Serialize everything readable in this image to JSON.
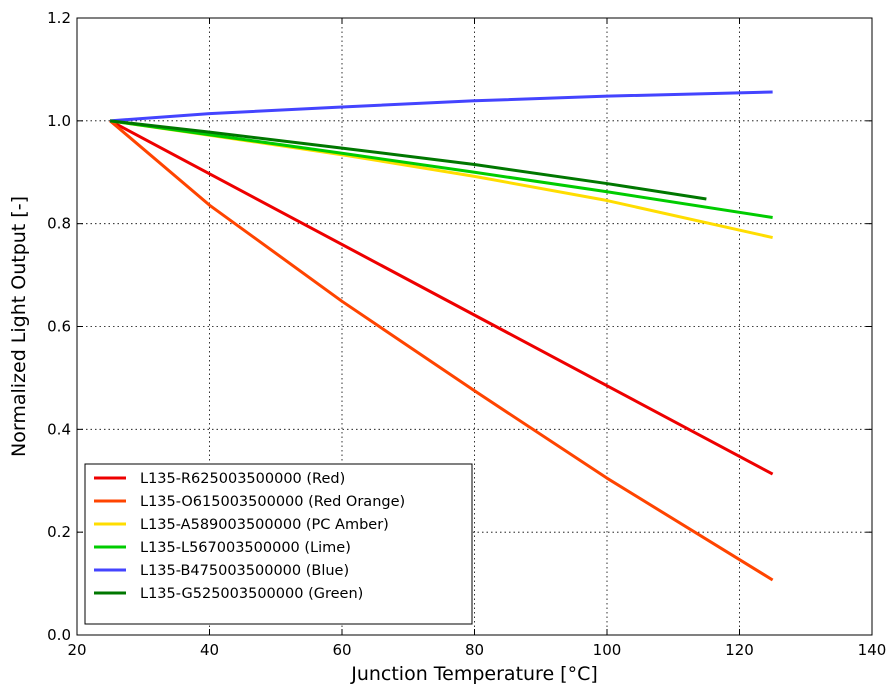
{
  "chart_data": {
    "type": "line",
    "xlabel": "Junction Temperature [°C]",
    "ylabel": "Normalized Light Output [-]",
    "xlim": [
      20,
      140
    ],
    "ylim": [
      0.0,
      1.2
    ],
    "x_ticks": [
      "20",
      "40",
      "60",
      "80",
      "100",
      "120",
      "140"
    ],
    "y_ticks": [
      "0.0",
      "0.2",
      "0.4",
      "0.6",
      "0.8",
      "1.0",
      "1.2"
    ],
    "grid": true,
    "legend_position": "lower-left",
    "series": [
      {
        "name": "L135-R625003500000 (Red)",
        "color": "#ee0000",
        "x": [
          25,
          125
        ],
        "y": [
          1.0,
          0.313
        ]
      },
      {
        "name": "L135-O615003500000 (Red Orange)",
        "color": "#ff4400",
        "x": [
          25,
          40,
          60,
          80,
          100,
          125
        ],
        "y": [
          1.0,
          0.836,
          0.649,
          0.475,
          0.305,
          0.107
        ]
      },
      {
        "name": "L135-A589003500000 (PC Amber)",
        "color": "#ffdd00",
        "x": [
          25,
          40,
          60,
          80,
          100,
          125
        ],
        "y": [
          1.0,
          0.972,
          0.934,
          0.892,
          0.845,
          0.773
        ]
      },
      {
        "name": "L135-L567003500000 (Lime)",
        "color": "#00cc00",
        "x": [
          25,
          40,
          60,
          80,
          100,
          125
        ],
        "y": [
          1.0,
          0.973,
          0.937,
          0.9,
          0.862,
          0.812
        ]
      },
      {
        "name": "L135-B475003500000 (Blue)",
        "color": "#4444ff",
        "x": [
          25,
          40,
          60,
          80,
          100,
          125
        ],
        "y": [
          1.0,
          1.014,
          1.027,
          1.039,
          1.048,
          1.056
        ]
      },
      {
        "name": "L135-G525003500000 (Green)",
        "color": "#007700",
        "x": [
          25,
          40,
          60,
          80,
          100,
          115
        ],
        "y": [
          1.0,
          0.978,
          0.947,
          0.915,
          0.878,
          0.848
        ]
      }
    ]
  }
}
